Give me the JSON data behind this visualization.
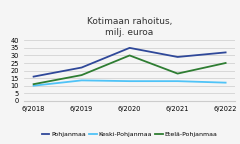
{
  "title": "Kotimaan rahoitus,\nmilj. euroa",
  "x_labels": [
    "6/2018",
    "6/2019",
    "6/2020",
    "6/2021",
    "6/2022"
  ],
  "series": [
    {
      "name": "Pohjanmaa",
      "color": "#2f4899",
      "values": [
        16,
        22,
        35,
        29,
        32
      ]
    },
    {
      "name": "Keski-Pohjanmaa",
      "color": "#4fc3f7",
      "values": [
        10,
        13.5,
        13,
        13,
        12
      ]
    },
    {
      "name": "Etelä-Pohjanmaa",
      "color": "#2e7d32",
      "values": [
        11,
        17,
        30,
        18,
        25
      ]
    }
  ],
  "ylim": [
    0,
    40
  ],
  "yticks": [
    0,
    5,
    10,
    15,
    20,
    25,
    30,
    35,
    40
  ],
  "background_color": "#f5f5f5",
  "title_fontsize": 6.5,
  "tick_fontsize": 4.8,
  "legend_fontsize": 4.5,
  "linewidth": 1.3
}
